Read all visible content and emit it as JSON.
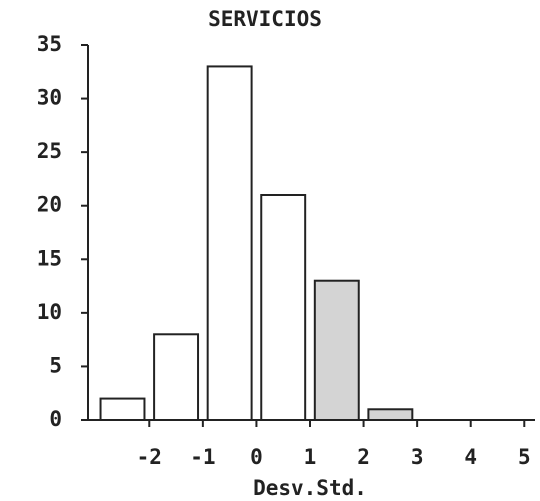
{
  "chart_data": {
    "type": "histogram",
    "title": "SERVICIOS",
    "x_label": "Desv.Std.",
    "bins": [
      -3,
      -2,
      -1,
      0,
      1,
      2,
      3
    ],
    "values": [
      2,
      8,
      33,
      21,
      13,
      1
    ],
    "colors": [
      "#ffffff",
      "#ffffff",
      "#ffffff",
      "#ffffff",
      "#d4d4d4",
      "#d4d4d4"
    ],
    "xlim": [
      -3.2,
      5.2
    ],
    "xticks": [
      -2,
      -1,
      0,
      1,
      2,
      3,
      4,
      5
    ],
    "ylim": [
      0,
      35
    ],
    "yticks": [
      0,
      5,
      10,
      15,
      20,
      25,
      30,
      35
    ],
    "grid": false
  }
}
